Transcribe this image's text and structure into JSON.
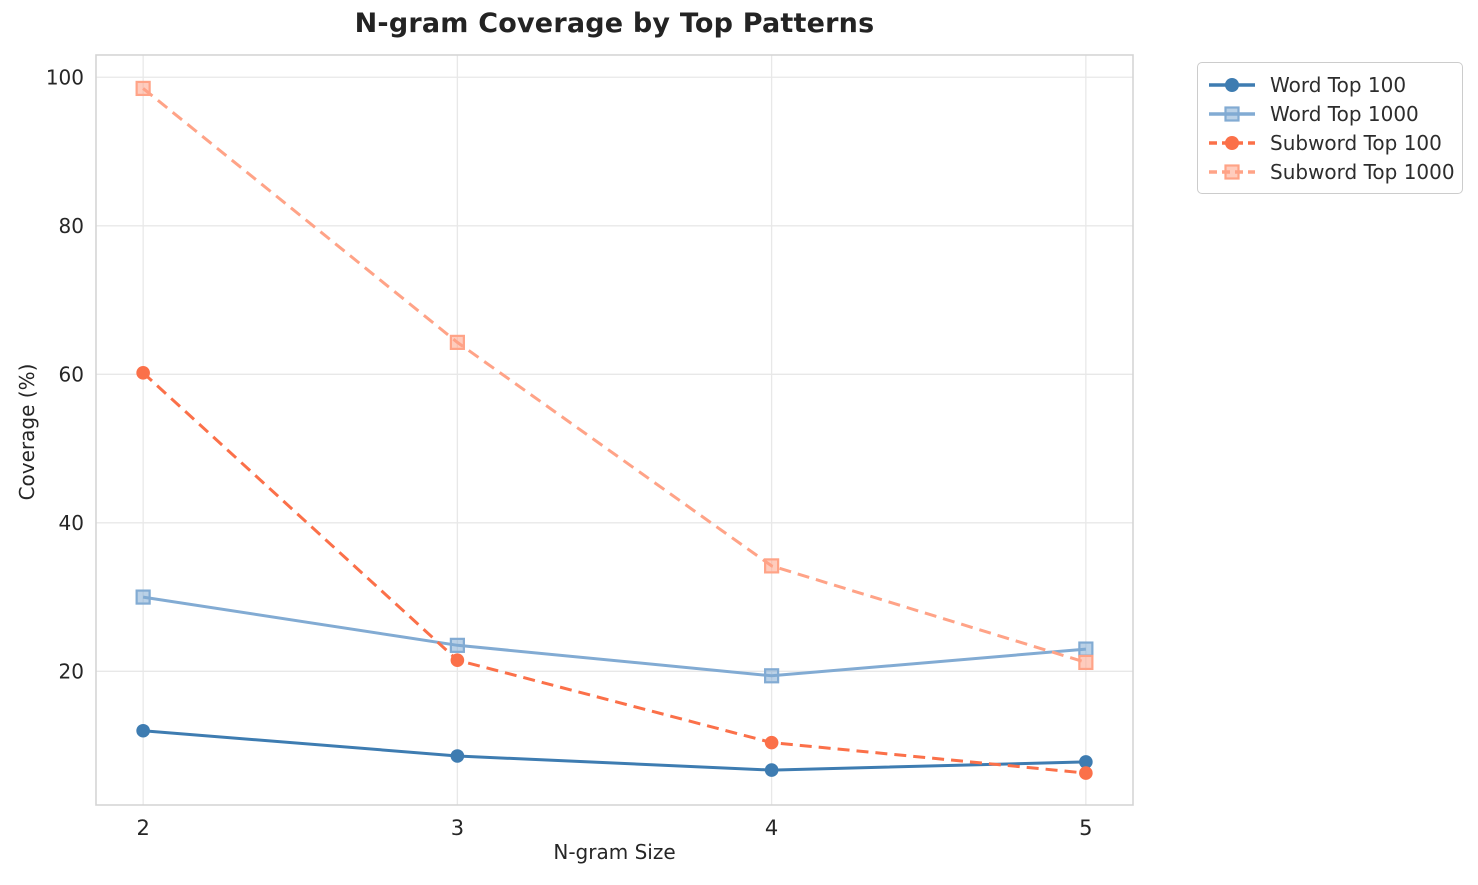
{
  "title": "N-gram Coverage by Top Patterns",
  "chart_data": {
    "type": "line",
    "title": "N-gram Coverage by Top Patterns",
    "xlabel": "N-gram Size",
    "ylabel": "Coverage (%)",
    "x": [
      2,
      3,
      4,
      5
    ],
    "xticks": [
      2,
      3,
      4,
      5
    ],
    "yticks": [
      20,
      40,
      60,
      80,
      100
    ],
    "xlim": [
      1.85,
      5.15
    ],
    "ylim": [
      2,
      103
    ],
    "grid": true,
    "legend_position": "outside-top-right",
    "series": [
      {
        "name": "Word Top 100",
        "values": [
          12.0,
          8.6,
          6.7,
          7.8
        ],
        "color": "#3e7cb1",
        "marker": "circle",
        "line_style": "solid"
      },
      {
        "name": "Word Top 1000",
        "values": [
          30.0,
          23.5,
          19.4,
          23.0
        ],
        "color": "#82abd3",
        "marker": "square",
        "line_style": "solid"
      },
      {
        "name": "Subword Top 100",
        "values": [
          60.2,
          21.5,
          10.4,
          6.3
        ],
        "color": "#fb7049",
        "marker": "circle",
        "line_style": "dashed"
      },
      {
        "name": "Subword Top 1000",
        "values": [
          98.5,
          64.3,
          34.2,
          21.2
        ],
        "color": "#ffa387",
        "marker": "square",
        "line_style": "dashed"
      }
    ],
    "colors": {
      "grid": "#e8e8e8",
      "spine": "#d5d5d5",
      "tick_text": "#262626",
      "title_text": "#232323"
    }
  }
}
